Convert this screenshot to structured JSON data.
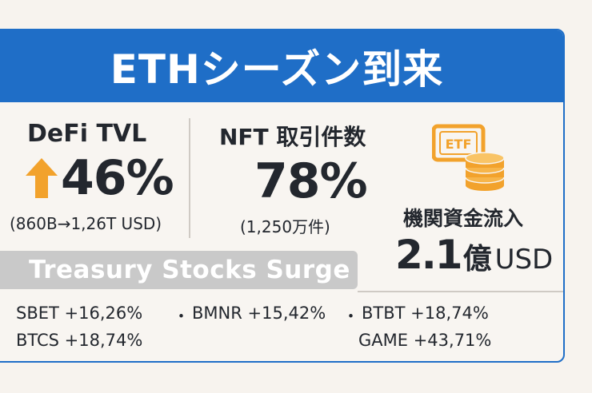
{
  "banner": {
    "title": "ETHシーズン到来"
  },
  "defi": {
    "label": "DeFi TVL",
    "value": "46%",
    "sub": "(860B→1,26T USD)"
  },
  "nft": {
    "label": "NFT 取引件数",
    "value": "78%",
    "sub": "(1,250万件)"
  },
  "etf": {
    "icon_text": "ETF",
    "label": "機関資金流入",
    "value_number": "2.1",
    "value_unit": "億",
    "value_currency": "USD"
  },
  "treasury": {
    "title": "Treasury Stocks Surge"
  },
  "tickers": {
    "sbet": "SBET +16,26%",
    "sep1": "・",
    "bmnr": "BMNR +15,42%",
    "sep2": "・",
    "btbt": "BTBT +18,74%",
    "btcs": "BTCS +18,74%",
    "game": "GAME +43,71%"
  },
  "colors": {
    "banner": "#1f6ec7",
    "arrow": "#f2a22c",
    "etf_gold": "#f2a22c",
    "treasury_band": "#c9c9c9"
  }
}
